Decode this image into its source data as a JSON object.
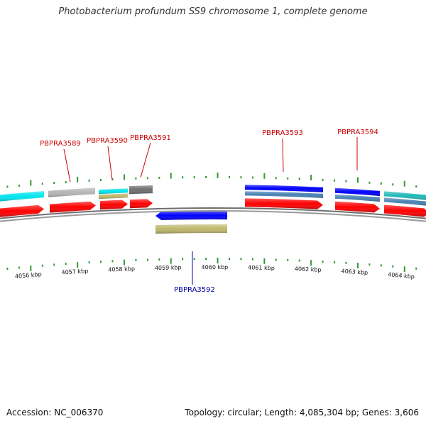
{
  "title": "Photobacterium profundum SS9 chromosome 1, complete genome",
  "footer": {
    "accession_label": "Accession: NC_006370",
    "topology_label": "Topology: circular; Length: 4,085,304 bp; Genes: 3,606"
  },
  "colors": {
    "backbone": "#8c8c8c",
    "tick": "#339933",
    "forward_label": "#cc0000",
    "reverse_label": "#0000aa",
    "cds": "#ff0000",
    "cyan": "#00e5ee",
    "gray": "#b5b5b5",
    "darkgray": "#6e6e6e",
    "khaki": "#bdb76b",
    "blue": "#0000ff",
    "steelblue": "#4682b4",
    "teal": "#1fb8b8"
  },
  "scale": {
    "labels": [
      "4056 kbp",
      "4057 kbp",
      "4058 kbp",
      "4059 kbp",
      "4060 kbp",
      "4061 kbp",
      "4062 kbp",
      "4063 kbp",
      "4064 kbp"
    ]
  },
  "gene_labels": [
    {
      "name": "PBPRA3589",
      "strand": "forward"
    },
    {
      "name": "PBPRA3590",
      "strand": "forward"
    },
    {
      "name": "PBPRA3591",
      "strand": "forward"
    },
    {
      "name": "PBPRA3592",
      "strand": "reverse"
    },
    {
      "name": "PBPRA3593",
      "strand": "forward"
    },
    {
      "name": "PBPRA3594",
      "strand": "forward"
    }
  ],
  "features": [
    {
      "track": "forward-annotation",
      "color": "cyan"
    },
    {
      "track": "forward-annotation",
      "color": "gray"
    },
    {
      "track": "forward-annotation",
      "color": "cyan"
    },
    {
      "track": "forward-annotation",
      "color": "khaki"
    },
    {
      "track": "forward-annotation",
      "color": "darkgray"
    },
    {
      "track": "forward-annotation",
      "color": "blue"
    },
    {
      "track": "forward-annotation",
      "color": "steelblue"
    },
    {
      "track": "forward-annotation",
      "color": "blue"
    },
    {
      "track": "forward-annotation",
      "color": "steelblue"
    },
    {
      "track": "forward-annotation",
      "color": "teal"
    },
    {
      "track": "forward-annotation",
      "color": "steelblue"
    },
    {
      "track": "forward-cds",
      "color": "cds"
    },
    {
      "track": "forward-cds",
      "color": "cds"
    },
    {
      "track": "forward-cds",
      "color": "cds"
    },
    {
      "track": "forward-cds",
      "color": "cds"
    },
    {
      "track": "forward-cds",
      "color": "cds"
    },
    {
      "track": "forward-cds",
      "color": "cds"
    },
    {
      "track": "forward-cds",
      "color": "cds"
    },
    {
      "track": "reverse-cds",
      "color": "blue"
    },
    {
      "track": "reverse-annotation",
      "color": "khaki"
    }
  ]
}
